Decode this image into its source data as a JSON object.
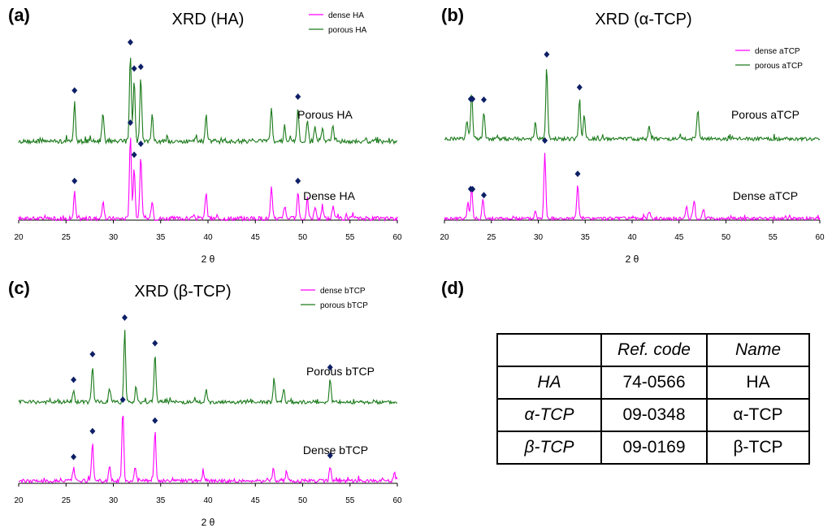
{
  "panels": [
    {
      "label": "(a)"
    },
    {
      "label": "(b)"
    },
    {
      "label": "(c)"
    },
    {
      "label": "(d)"
    }
  ],
  "chart_data": [
    {
      "type": "line",
      "title": "XRD (HA)",
      "xlabel": "2 θ",
      "xlim": [
        20,
        60
      ],
      "xticks": [
        20,
        25,
        30,
        35,
        40,
        45,
        50,
        55,
        60
      ],
      "legend_position": "top-right",
      "series": [
        {
          "name": "dense HA",
          "color": "#ff00ff",
          "curve_label": "Dense HA",
          "peaks": [
            [
              25.9,
              0.31
            ],
            [
              28.9,
              0.2
            ],
            [
              31.8,
              1.0
            ],
            [
              32.2,
              0.62
            ],
            [
              32.9,
              0.75
            ],
            [
              34.1,
              0.22
            ],
            [
              39.8,
              0.32
            ],
            [
              46.7,
              0.36
            ],
            [
              48.1,
              0.15
            ],
            [
              49.5,
              0.31
            ],
            [
              50.5,
              0.24
            ],
            [
              51.3,
              0.14
            ],
            [
              52.1,
              0.14
            ],
            [
              53.2,
              0.15
            ]
          ],
          "markers": [
            25.9,
            31.8,
            32.2,
            32.9,
            49.5
          ]
        },
        {
          "name": "porous HA",
          "color": "#1a7a1a",
          "curve_label": "Porous HA",
          "peaks": [
            [
              25.9,
              0.45
            ],
            [
              28.9,
              0.32
            ],
            [
              31.8,
              1.0
            ],
            [
              32.2,
              0.7
            ],
            [
              32.9,
              0.72
            ],
            [
              34.1,
              0.3
            ],
            [
              39.8,
              0.3
            ],
            [
              46.7,
              0.38
            ],
            [
              48.1,
              0.18
            ],
            [
              49.5,
              0.38
            ],
            [
              50.5,
              0.25
            ],
            [
              51.3,
              0.16
            ],
            [
              52.1,
              0.16
            ],
            [
              53.2,
              0.18
            ]
          ],
          "markers": [
            25.9,
            31.8,
            32.2,
            32.9,
            49.5
          ]
        }
      ]
    },
    {
      "type": "line",
      "title": "XRD (α-TCP)",
      "xlabel": "2 θ",
      "xlim": [
        20,
        60
      ],
      "xticks": [
        20,
        25,
        30,
        35,
        40,
        45,
        50,
        55,
        60
      ],
      "legend_position": "top-right",
      "series": [
        {
          "name": "dense aTCP",
          "color": "#ff00ff",
          "curve_label": "Dense aTCP",
          "peaks": [
            [
              22.5,
              0.25
            ],
            [
              22.9,
              0.45
            ],
            [
              24.1,
              0.3
            ],
            [
              29.7,
              0.12
            ],
            [
              30.7,
              1.0
            ],
            [
              34.2,
              0.5
            ],
            [
              41.8,
              0.12
            ],
            [
              45.8,
              0.18
            ],
            [
              46.6,
              0.28
            ],
            [
              47.6,
              0.14
            ]
          ],
          "markers": [
            22.8,
            23.0,
            24.2,
            30.7,
            34.2
          ]
        },
        {
          "name": "porous aTCP",
          "color": "#1a7a1a",
          "curve_label": "Porous aTCP",
          "peaks": [
            [
              22.4,
              0.25
            ],
            [
              22.9,
              0.65
            ],
            [
              24.2,
              0.38
            ],
            [
              29.7,
              0.2
            ],
            [
              30.9,
              1.0
            ],
            [
              34.4,
              0.55
            ],
            [
              34.9,
              0.3
            ],
            [
              41.8,
              0.18
            ],
            [
              47.0,
              0.4
            ]
          ],
          "markers": [
            22.8,
            23.0,
            24.2,
            30.9,
            34.4
          ]
        }
      ]
    },
    {
      "type": "line",
      "title": "XRD (β-TCP)",
      "xlabel": "2 θ",
      "xlim": [
        20,
        60
      ],
      "xticks": [
        20,
        25,
        30,
        35,
        40,
        45,
        50,
        55,
        60
      ],
      "legend_position": "top-right",
      "series": [
        {
          "name": "dense bTCP",
          "color": "#ff00ff",
          "curve_label": "Dense bTCP",
          "peaks": [
            [
              25.8,
              0.18
            ],
            [
              27.8,
              0.55
            ],
            [
              29.6,
              0.2
            ],
            [
              31.0,
              1.0
            ],
            [
              32.3,
              0.22
            ],
            [
              34.4,
              0.7
            ],
            [
              39.5,
              0.12
            ],
            [
              46.9,
              0.18
            ],
            [
              48.3,
              0.14
            ],
            [
              52.9,
              0.2
            ],
            [
              59.7,
              0.12
            ]
          ],
          "markers": [
            25.8,
            27.8,
            31.0,
            34.4,
            52.9
          ]
        },
        {
          "name": "porous bTCP",
          "color": "#1a7a1a",
          "curve_label": "Porous bTCP",
          "peaks": [
            [
              25.8,
              0.15
            ],
            [
              27.8,
              0.5
            ],
            [
              29.6,
              0.2
            ],
            [
              31.2,
              1.0
            ],
            [
              32.4,
              0.22
            ],
            [
              34.4,
              0.65
            ],
            [
              39.8,
              0.15
            ],
            [
              47.0,
              0.3
            ],
            [
              48.0,
              0.2
            ],
            [
              52.9,
              0.32
            ]
          ],
          "markers": [
            25.8,
            27.8,
            31.2,
            34.4,
            52.9
          ]
        }
      ]
    },
    {
      "type": "table",
      "headers": [
        "",
        "Ref. code",
        "Name"
      ],
      "rows": [
        [
          "HA",
          "74-0566",
          "HA"
        ],
        [
          "α-TCP",
          "09-0348",
          "α-TCP"
        ],
        [
          "β-TCP",
          "09-0169",
          "β-TCP"
        ]
      ]
    }
  ]
}
